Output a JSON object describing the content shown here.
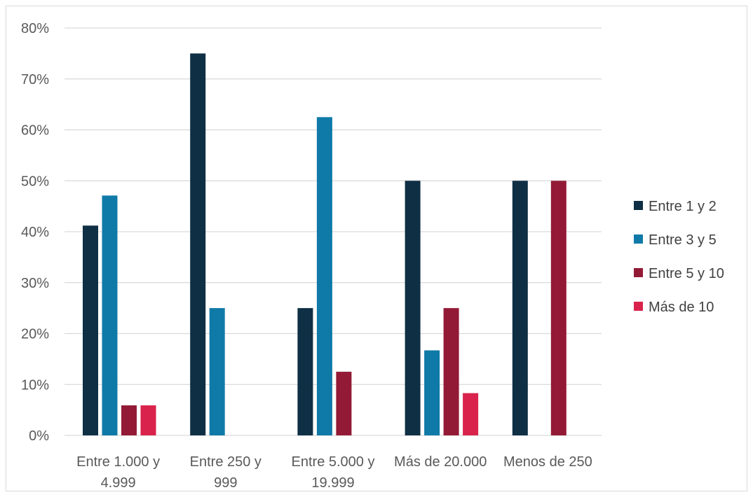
{
  "chart_data": {
    "type": "bar",
    "categories": [
      [
        "Entre 1.000 y",
        "4.999"
      ],
      [
        "Entre 250 y",
        "999"
      ],
      [
        "Entre 5.000 y",
        "19.999"
      ],
      [
        "Más de 20.000"
      ],
      [
        "Menos de 250"
      ]
    ],
    "series": [
      {
        "name": "Entre 1 y 2",
        "color": "#0e2f44",
        "values": [
          41.2,
          75,
          25,
          50,
          50
        ]
      },
      {
        "name": "Entre 3 y 5",
        "color": "#0f7aa8",
        "values": [
          47.1,
          25,
          62.5,
          16.7,
          0
        ]
      },
      {
        "name": "Entre 5 y 10",
        "color": "#931a36",
        "values": [
          5.9,
          0,
          12.5,
          25,
          50
        ]
      },
      {
        "name": "Más de 10",
        "color": "#d9234c",
        "values": [
          5.9,
          0,
          0,
          8.3,
          0
        ]
      }
    ],
    "ylim": [
      0,
      80
    ],
    "yticks": [
      "0%",
      "10%",
      "20%",
      "30%",
      "40%",
      "50%",
      "60%",
      "70%",
      "80%"
    ],
    "grid": true,
    "legend_position": "right",
    "gridline_color": "#d9d9d9"
  }
}
